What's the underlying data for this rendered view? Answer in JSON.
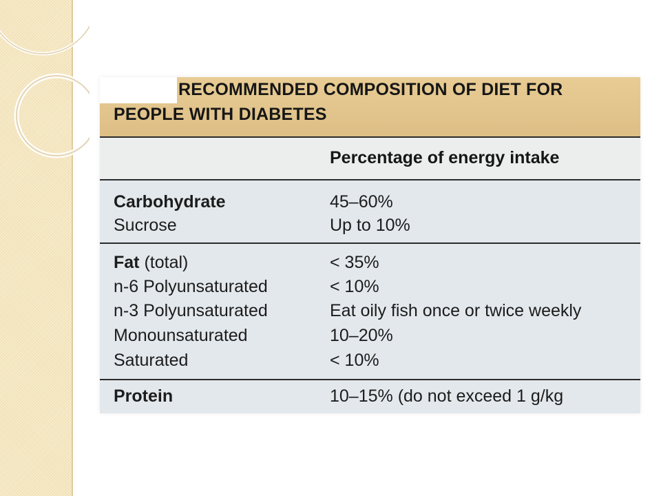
{
  "slide": {
    "title_line1": "RECOMMENDED COMPOSITION OF DIET FOR",
    "title_line2": "PEOPLE WITH DIABETES",
    "column_header": "Percentage of energy intake",
    "rows": [
      {
        "name": "Carbohydrate",
        "suffix": "",
        "value": "45–60%",
        "bold": true
      },
      {
        "name": "Sucrose",
        "suffix": "",
        "value": "Up to 10%",
        "bold": false
      },
      {
        "name": "Fat",
        "suffix": " (total)",
        "value": "< 35%",
        "bold": true
      },
      {
        "name": "n-6 Polyunsaturated",
        "suffix": "",
        "value": "< 10%",
        "bold": false
      },
      {
        "name": "n-3 Polyunsaturated",
        "suffix": "",
        "value": "Eat oily fish once or twice weekly",
        "bold": false
      },
      {
        "name": "Monounsaturated",
        "suffix": "",
        "value": "10–20%",
        "bold": false
      },
      {
        "name": "Saturated",
        "suffix": "",
        "value": "< 10%",
        "bold": false
      },
      {
        "name": "Protein",
        "suffix": "",
        "value": "10–15% (do not exceed 1 g/kg",
        "bold": true
      }
    ]
  },
  "colors": {
    "title_band": "#ddbf86",
    "left_band": "#f6e8c2",
    "table_body": "#e3e8ec"
  }
}
